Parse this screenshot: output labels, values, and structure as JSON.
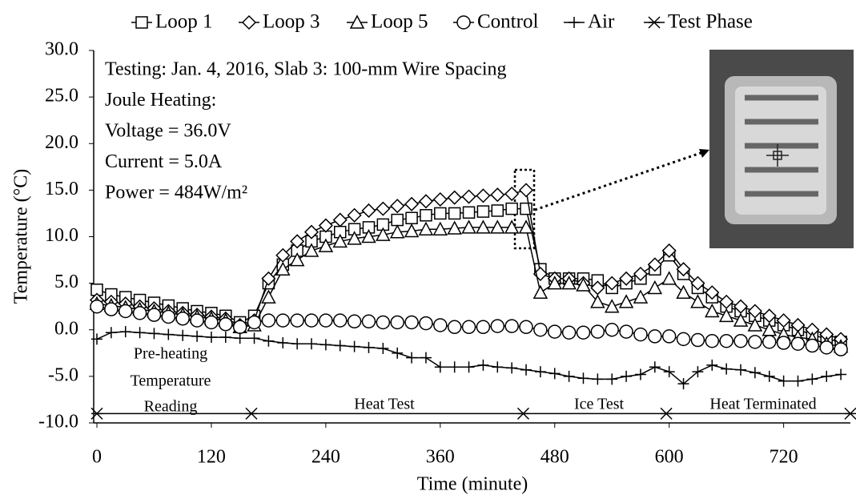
{
  "chart_data": {
    "type": "line",
    "x_label": "Time (minute)",
    "y_label": "Temperature (°C)",
    "xlim": [
      0,
      790
    ],
    "xticks": [
      0,
      120,
      240,
      360,
      480,
      600,
      720
    ],
    "ylim": [
      -10,
      30
    ],
    "yticks": [
      {
        "value": -10,
        "label": "-10.0"
      },
      {
        "value": -5,
        "label": "-5.0"
      },
      {
        "value": 0,
        "label": "0.0"
      },
      {
        "value": 5,
        "label": "5.0"
      },
      {
        "value": 10,
        "label": "10.0"
      },
      {
        "value": 15,
        "label": "15.0"
      },
      {
        "value": 20,
        "label": "20.0"
      },
      {
        "value": 25,
        "label": "25.0"
      },
      {
        "value": 30,
        "label": "30.0"
      }
    ],
    "x": [
      0,
      15,
      30,
      45,
      60,
      75,
      90,
      105,
      120,
      135,
      150,
      165,
      180,
      195,
      210,
      225,
      240,
      255,
      270,
      285,
      300,
      315,
      330,
      345,
      360,
      375,
      390,
      405,
      420,
      435,
      450,
      465,
      480,
      495,
      510,
      525,
      540,
      555,
      570,
      585,
      600,
      615,
      630,
      645,
      660,
      675,
      690,
      705,
      720,
      735,
      750,
      765,
      780
    ],
    "series": [
      {
        "name": "Loop 1",
        "marker": "square",
        "color": "#000000",
        "values": [
          4.3,
          3.8,
          3.5,
          3.2,
          2.9,
          2.6,
          2.3,
          2.0,
          1.8,
          1.5,
          0.8,
          1.5,
          5.0,
          7.0,
          8.5,
          9.5,
          10.0,
          10.5,
          10.8,
          11.0,
          11.3,
          11.8,
          12.0,
          12.3,
          12.5,
          12.5,
          12.6,
          12.7,
          12.8,
          13.0,
          13.0,
          6.5,
          5.5,
          5.5,
          5.5,
          5.3,
          4.5,
          5.0,
          5.5,
          6.5,
          8.0,
          6.0,
          4.5,
          3.5,
          2.5,
          2.0,
          1.5,
          1.0,
          0.5,
          0.0,
          -0.5,
          -1.0,
          -1.3
        ]
      },
      {
        "name": "Loop 3",
        "marker": "diamond",
        "color": "#000000",
        "values": [
          3.2,
          3.0,
          2.8,
          2.5,
          2.3,
          2.0,
          1.8,
          1.6,
          1.4,
          1.2,
          0.5,
          1.0,
          5.5,
          8.0,
          9.5,
          10.5,
          11.2,
          11.8,
          12.3,
          12.8,
          13.0,
          13.3,
          13.5,
          13.8,
          14.0,
          14.2,
          14.3,
          14.4,
          14.5,
          14.6,
          15.0,
          6.0,
          5.5,
          5.5,
          5.0,
          4.5,
          5.0,
          5.5,
          6.0,
          7.0,
          8.5,
          6.5,
          5.0,
          4.0,
          3.0,
          2.5,
          2.0,
          1.5,
          1.0,
          0.5,
          0.0,
          -0.5,
          -1.0
        ]
      },
      {
        "name": "Loop 5",
        "marker": "triangle",
        "color": "#000000",
        "values": [
          2.8,
          2.6,
          2.4,
          2.2,
          2.0,
          1.8,
          1.6,
          1.4,
          1.2,
          1.0,
          0.3,
          0.5,
          3.5,
          6.5,
          7.5,
          8.5,
          9.0,
          9.5,
          9.8,
          10.0,
          10.2,
          10.5,
          10.6,
          10.8,
          10.8,
          10.9,
          11.0,
          11.0,
          11.0,
          11.0,
          11.0,
          4.0,
          5.0,
          5.0,
          4.8,
          3.0,
          2.5,
          3.0,
          3.5,
          4.5,
          5.5,
          4.0,
          3.0,
          2.0,
          1.5,
          1.0,
          0.5,
          0.0,
          -0.5,
          -0.8,
          -1.0,
          -1.5,
          -1.8
        ]
      },
      {
        "name": "Control",
        "marker": "circle",
        "color": "#000000",
        "values": [
          2.5,
          2.2,
          2.0,
          1.8,
          1.6,
          1.4,
          1.2,
          1.0,
          0.8,
          0.6,
          0.3,
          0.8,
          1.0,
          1.0,
          1.0,
          1.0,
          1.0,
          1.0,
          0.9,
          0.9,
          0.8,
          0.8,
          0.8,
          0.7,
          0.5,
          0.3,
          0.3,
          0.3,
          0.4,
          0.4,
          0.3,
          0.0,
          -0.2,
          -0.3,
          -0.3,
          -0.2,
          0.0,
          -0.2,
          -0.5,
          -0.7,
          -0.7,
          -1.0,
          -1.1,
          -1.2,
          -1.2,
          -1.2,
          -1.3,
          -1.3,
          -1.4,
          -1.5,
          -1.7,
          -1.9,
          -2.1
        ]
      },
      {
        "name": "Air",
        "marker": "plus",
        "color": "#000000",
        "values": [
          -1.0,
          -0.3,
          -0.2,
          -0.3,
          -0.4,
          -0.5,
          -0.6,
          -0.7,
          -0.8,
          -0.8,
          -0.9,
          -0.9,
          -1.2,
          -1.4,
          -1.5,
          -1.5,
          -1.6,
          -1.7,
          -1.8,
          -1.9,
          -2.0,
          -2.5,
          -3.0,
          -3.0,
          -4.0,
          -4.0,
          -4.0,
          -3.8,
          -4.0,
          -4.1,
          -4.3,
          -4.5,
          -4.7,
          -5.0,
          -5.2,
          -5.3,
          -5.3,
          -5.0,
          -4.8,
          -4.0,
          -4.5,
          -5.8,
          -4.5,
          -3.8,
          -4.2,
          -4.3,
          -4.6,
          -5.0,
          -5.5,
          -5.5,
          -5.3,
          -5.0,
          -4.8
        ]
      },
      {
        "name": "Test Phase",
        "marker": "asterisk",
        "color": "#000000",
        "x": [
          0,
          162,
          447,
          597,
          790
        ],
        "values": [
          -9,
          -9,
          -9,
          -9,
          -9
        ]
      }
    ],
    "annotations": [
      "Testing: Jan. 4, 2016, Slab 3: 100-mm Wire Spacing",
      "Joule Heating:",
      "Voltage = 36.0V",
      "Current = 5.0A",
      "Power = 484W/m²"
    ],
    "phase_labels": [
      "Pre-heating",
      "Temperature",
      "Reading",
      "Heat Test",
      "Ice Test",
      "Heat Terminated"
    ]
  }
}
